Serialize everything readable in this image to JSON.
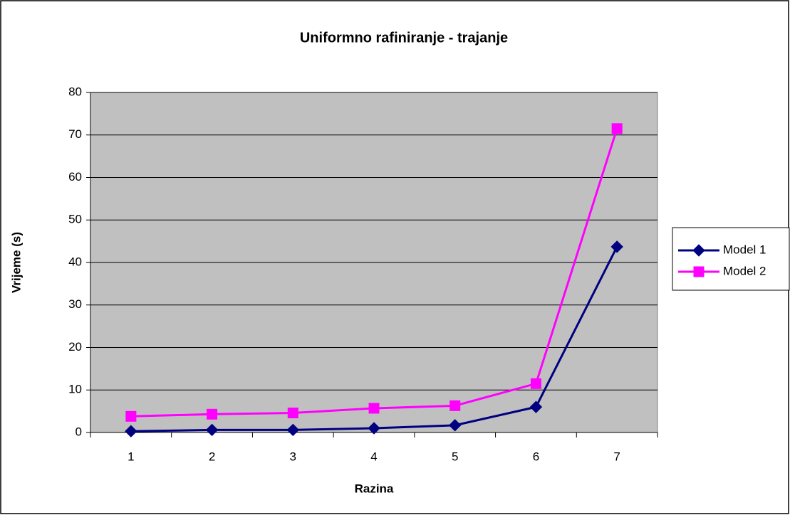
{
  "chart_data": {
    "type": "line",
    "title": "Uniformno rafiniranje - trajanje",
    "x_label": "Razina",
    "y_label": "Vrijeme (s)",
    "categories": [
      "1",
      "2",
      "3",
      "4",
      "5",
      "6",
      "7"
    ],
    "series": [
      {
        "name": "Model 1",
        "color": "#000080",
        "marker": "diamond",
        "values": [
          0.3,
          0.6,
          0.6,
          1.0,
          1.7,
          6.0,
          43.7
        ]
      },
      {
        "name": "Model 2",
        "color": "#ff00ff",
        "marker": "square",
        "values": [
          3.8,
          4.3,
          4.6,
          5.7,
          6.3,
          11.5,
          71.5
        ]
      }
    ],
    "ylim": [
      0,
      80
    ],
    "yticks": [
      0,
      10,
      20,
      30,
      40,
      50,
      60,
      70,
      80
    ],
    "grid": true,
    "legend": "right"
  }
}
